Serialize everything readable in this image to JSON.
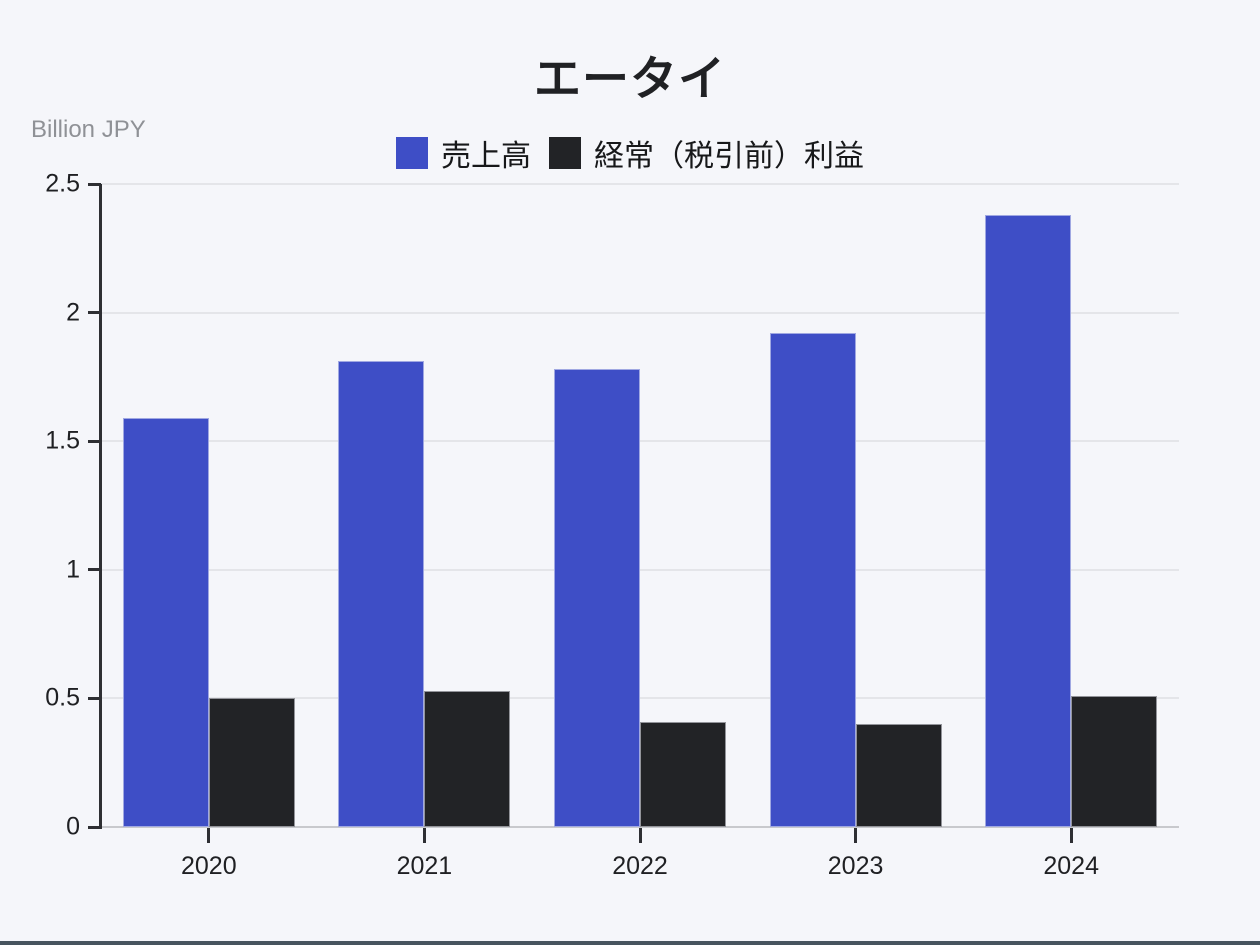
{
  "title": "エータイ",
  "unit_label": "Billion JPY",
  "colors": {
    "background": "#F5F6FA",
    "revenue": "#3E4EC6",
    "profit": "#222326",
    "gridline": "#E4E5E9",
    "axis": "#2E2F33",
    "text": "#1F2023",
    "muted_text": "#8F9196",
    "bottom_border": "#47545F"
  },
  "chart_data": {
    "type": "bar",
    "title": "エータイ",
    "ylabel": "Billion JPY",
    "categories": [
      "2020",
      "2021",
      "2022",
      "2023",
      "2024"
    ],
    "series": [
      {
        "name": "売上高",
        "key": "revenue",
        "color": "#3E4EC6",
        "values": [
          1.59,
          1.81,
          1.78,
          1.92,
          2.38
        ]
      },
      {
        "name": "経常（税引前）利益",
        "key": "profit",
        "color": "#222326",
        "values": [
          0.5,
          0.53,
          0.41,
          0.4,
          0.51
        ]
      }
    ],
    "ylim": [
      0,
      2.5
    ],
    "yticks": [
      0,
      0.5,
      1,
      1.5,
      2,
      2.5
    ],
    "grid": true,
    "legend_position": "top"
  }
}
